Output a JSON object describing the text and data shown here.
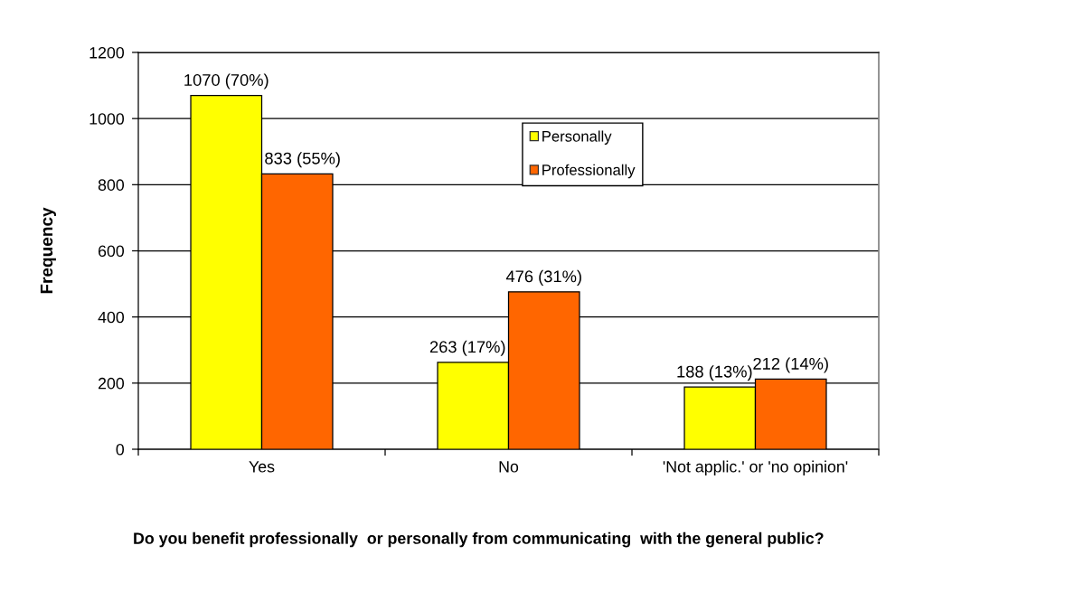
{
  "chart_data": {
    "type": "bar",
    "categories": [
      "Yes",
      "No",
      "'Not applic.' or 'no opinion'"
    ],
    "series": [
      {
        "name": "Personally",
        "color": "#ffff00",
        "values": [
          1070,
          263,
          188
        ],
        "value_labels": [
          "1070 (70%)",
          "263 (17%)",
          "188 (13%)"
        ]
      },
      {
        "name": "Professionally",
        "color": "#ff6600",
        "values": [
          833,
          476,
          212
        ],
        "value_labels": [
          "833 (55%)",
          "476 (31%)",
          "212 (14%)"
        ]
      }
    ],
    "xlabel": "Do you benefit professionally  or personally from communicating  with the general public?",
    "ylabel": "Frequency",
    "ylim": [
      0,
      1200
    ],
    "yticks": [
      0,
      200,
      400,
      600,
      800,
      1000,
      1200
    ],
    "grid": "y",
    "legend": "top"
  }
}
